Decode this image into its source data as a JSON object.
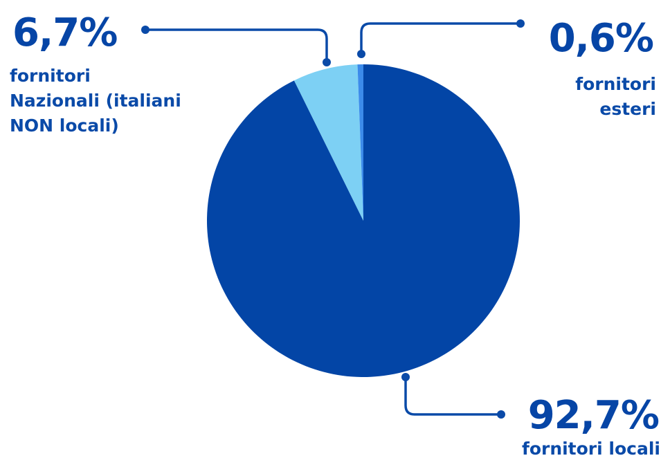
{
  "chart_data": {
    "type": "pie",
    "slices": [
      {
        "value_label": "92,7%",
        "value": 92.7,
        "label_lines": [
          "fornitori locali"
        ],
        "color": "#0345a6"
      },
      {
        "value_label": "6,7%",
        "value": 6.7,
        "label_lines": [
          "fornitori",
          "Nazionali (italiani",
          "NON locali)"
        ],
        "color": "#7dd0f4"
      },
      {
        "value_label": "0,6%",
        "value": 0.6,
        "label_lines": [
          "fornitori",
          "esteri"
        ],
        "color": "#3c8bea"
      }
    ],
    "connector_color": "#0a4aa8"
  }
}
